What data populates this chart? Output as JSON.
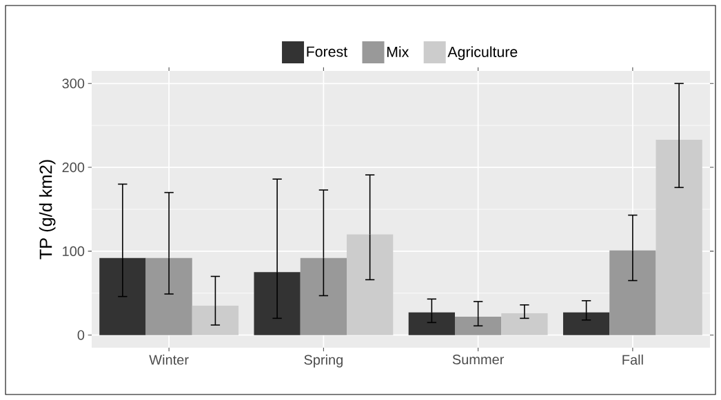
{
  "chart_data": {
    "type": "bar",
    "ylabel": "TP (g/d km2)",
    "categories": [
      "Winter",
      "Spring",
      "Summer",
      "Fall"
    ],
    "series": [
      {
        "name": "Forest",
        "color": "#333333",
        "values": [
          92,
          75,
          27,
          27
        ],
        "errors": [
          [
            46,
            180
          ],
          [
            20,
            186
          ],
          [
            15,
            43
          ],
          [
            18,
            41
          ]
        ]
      },
      {
        "name": "Mix",
        "color": "#999999",
        "values": [
          92,
          92,
          22,
          101
        ],
        "errors": [
          [
            49,
            170
          ],
          [
            47,
            173
          ],
          [
            11,
            40
          ],
          [
            65,
            143
          ]
        ]
      },
      {
        "name": "Agriculture",
        "color": "#cccccc",
        "values": [
          35,
          120,
          26,
          233
        ],
        "errors": [
          [
            12,
            70
          ],
          [
            66,
            191
          ],
          [
            20,
            36
          ],
          [
            176,
            300
          ]
        ]
      }
    ],
    "ylim": [
      -15,
      315
    ],
    "yticks": [
      0,
      100,
      200,
      300
    ],
    "grid": true,
    "legend": "top"
  }
}
